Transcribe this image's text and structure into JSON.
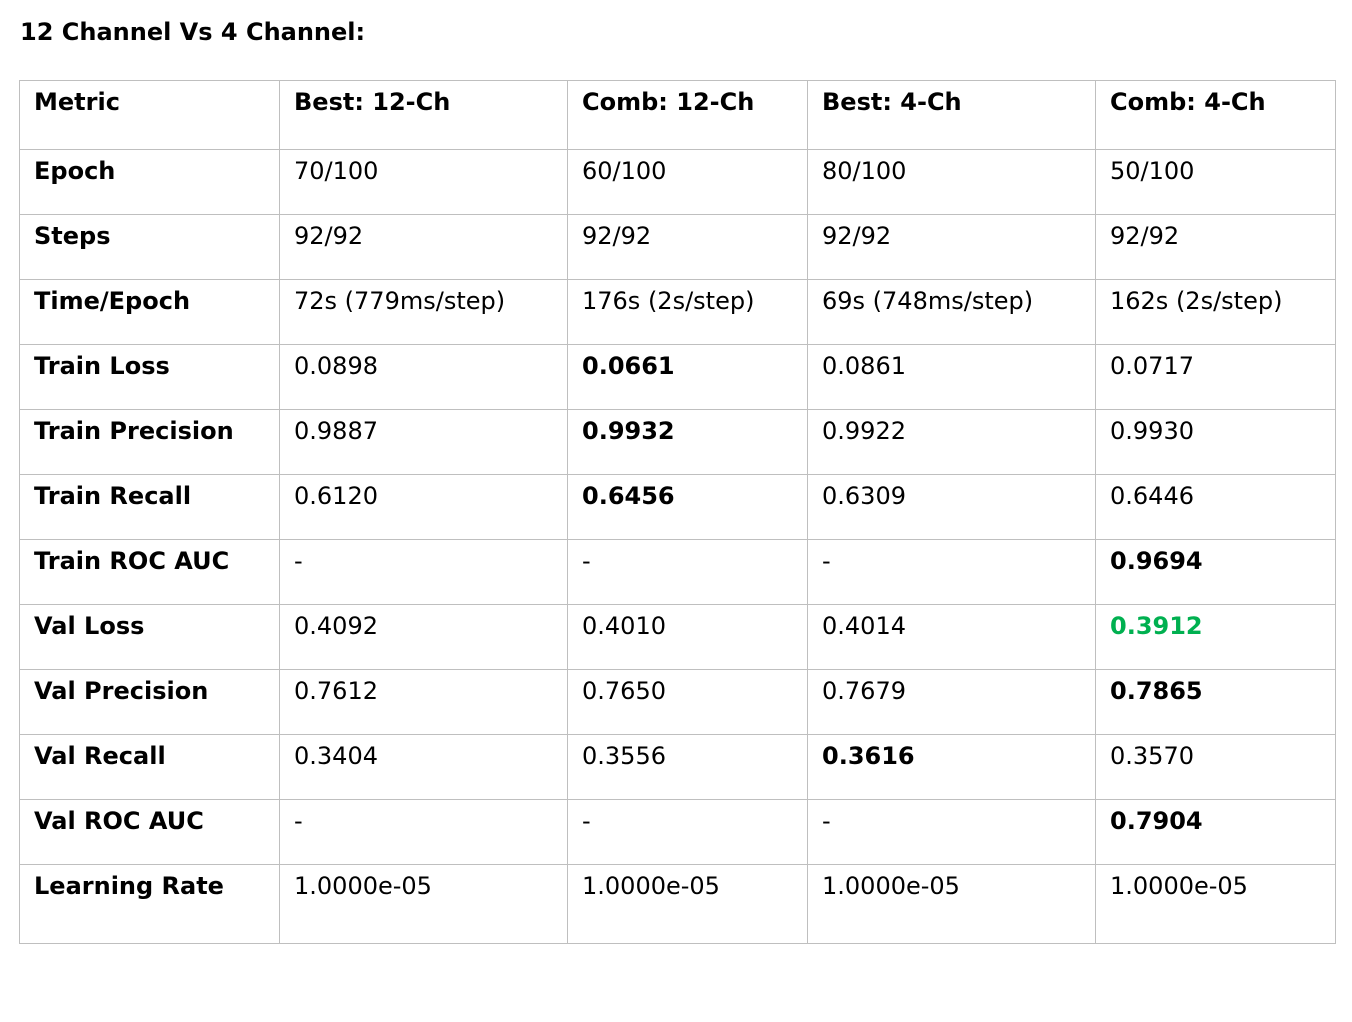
{
  "heading": "12 Channel Vs 4 Channel:",
  "headers": [
    "Metric",
    "Best: 12-Ch",
    "Comb: 12-Ch",
    "Best: 4-Ch",
    "Comb: 4-Ch"
  ],
  "rows": [
    {
      "metric": "Epoch",
      "values": [
        "70/100",
        "60/100",
        "80/100",
        "50/100"
      ],
      "emphasis": [
        "",
        "",
        "",
        ""
      ]
    },
    {
      "metric": "Steps",
      "values": [
        "92/92",
        "92/92",
        "92/92",
        "92/92"
      ],
      "emphasis": [
        "",
        "",
        "",
        ""
      ]
    },
    {
      "metric": "Time/Epoch",
      "values": [
        "72s (779ms/step)",
        "176s (2s/step)",
        "69s (748ms/step)",
        "162s (2s/step)"
      ],
      "emphasis": [
        "",
        "",
        "",
        ""
      ]
    },
    {
      "metric": "Train Loss",
      "values": [
        "0.0898",
        "0.0661",
        "0.0861",
        "0.0717"
      ],
      "emphasis": [
        "",
        "bold",
        "",
        ""
      ]
    },
    {
      "metric": "Train Precision",
      "values": [
        "0.9887",
        "0.9932",
        "0.9922",
        "0.9930"
      ],
      "emphasis": [
        "",
        "bold",
        "",
        ""
      ]
    },
    {
      "metric": "Train Recall",
      "values": [
        "0.6120",
        "0.6456",
        "0.6309",
        "0.6446"
      ],
      "emphasis": [
        "",
        "bold",
        "",
        ""
      ]
    },
    {
      "metric": "Train ROC AUC",
      "values": [
        "-",
        "-",
        "-",
        "0.9694"
      ],
      "emphasis": [
        "",
        "",
        "",
        "bold"
      ]
    },
    {
      "metric": "Val Loss",
      "values": [
        "0.4092",
        "0.4010",
        "0.4014",
        "0.3912"
      ],
      "emphasis": [
        "",
        "",
        "",
        "green"
      ]
    },
    {
      "metric": "Val Precision",
      "values": [
        "0.7612",
        "0.7650",
        "0.7679",
        "0.7865"
      ],
      "emphasis": [
        "",
        "",
        "",
        "bold"
      ]
    },
    {
      "metric": "Val Recall",
      "values": [
        "0.3404",
        "0.3556",
        "0.3616",
        "0.3570"
      ],
      "emphasis": [
        "",
        "",
        "bold",
        ""
      ]
    },
    {
      "metric": "Val ROC AUC",
      "values": [
        "-",
        "-",
        "-",
        "0.7904"
      ],
      "emphasis": [
        "",
        "",
        "",
        "bold"
      ]
    },
    {
      "metric": "Learning Rate",
      "values": [
        "1.0000e-05",
        "1.0000e-05",
        "1.0000e-05",
        "1.0000e-05"
      ],
      "emphasis": [
        "",
        "",
        "",
        ""
      ]
    }
  ],
  "colors": {
    "highlight_green": "#00b050",
    "border": "#bfbfbf",
    "text": "#000000"
  }
}
